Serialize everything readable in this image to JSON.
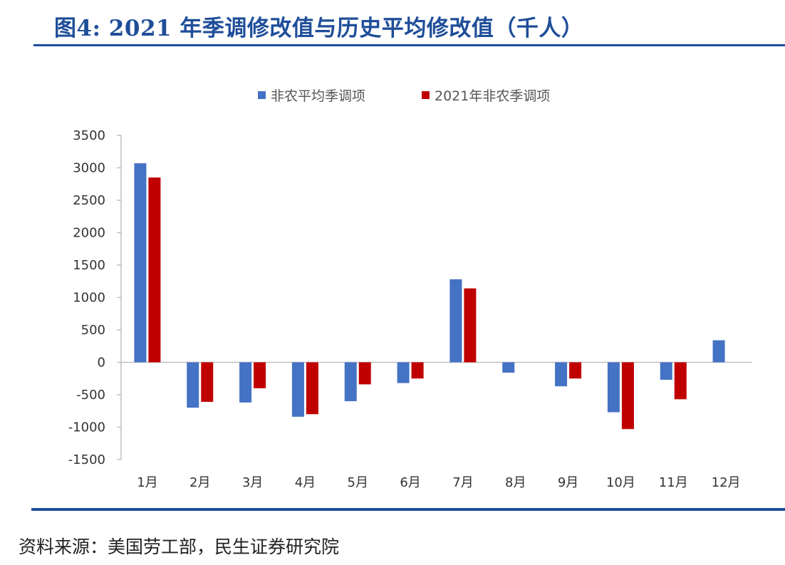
{
  "title": "图4: 2021 年季调修改值与历史平均修改值（千人）",
  "source": "资料来源：美国劳工部，民生证券研究院",
  "colors": {
    "brand": "#1f4e99",
    "series_avg": "#4472c4",
    "series_2021": "#c00000"
  },
  "chart_data": {
    "type": "bar",
    "categories": [
      "1月",
      "2月",
      "3月",
      "4月",
      "5月",
      "6月",
      "7月",
      "8月",
      "9月",
      "10月",
      "11月",
      "12月"
    ],
    "series": [
      {
        "name": "非农平均季调项",
        "color": "#4472c4",
        "values": [
          3070,
          -700,
          -620,
          -840,
          -600,
          -320,
          1280,
          -160,
          -370,
          -770,
          -270,
          340
        ]
      },
      {
        "name": "2021年非农季调项",
        "color": "#c00000",
        "values": [
          2850,
          -610,
          -400,
          -800,
          -340,
          -250,
          1140,
          null,
          -250,
          -1030,
          -570,
          null
        ]
      }
    ],
    "ylim": [
      -1500,
      3500
    ],
    "yticks": [
      3500,
      3000,
      2500,
      2000,
      1500,
      1000,
      500,
      0,
      -500,
      -1000,
      -1500
    ],
    "legend": "top-center",
    "grid": false
  }
}
